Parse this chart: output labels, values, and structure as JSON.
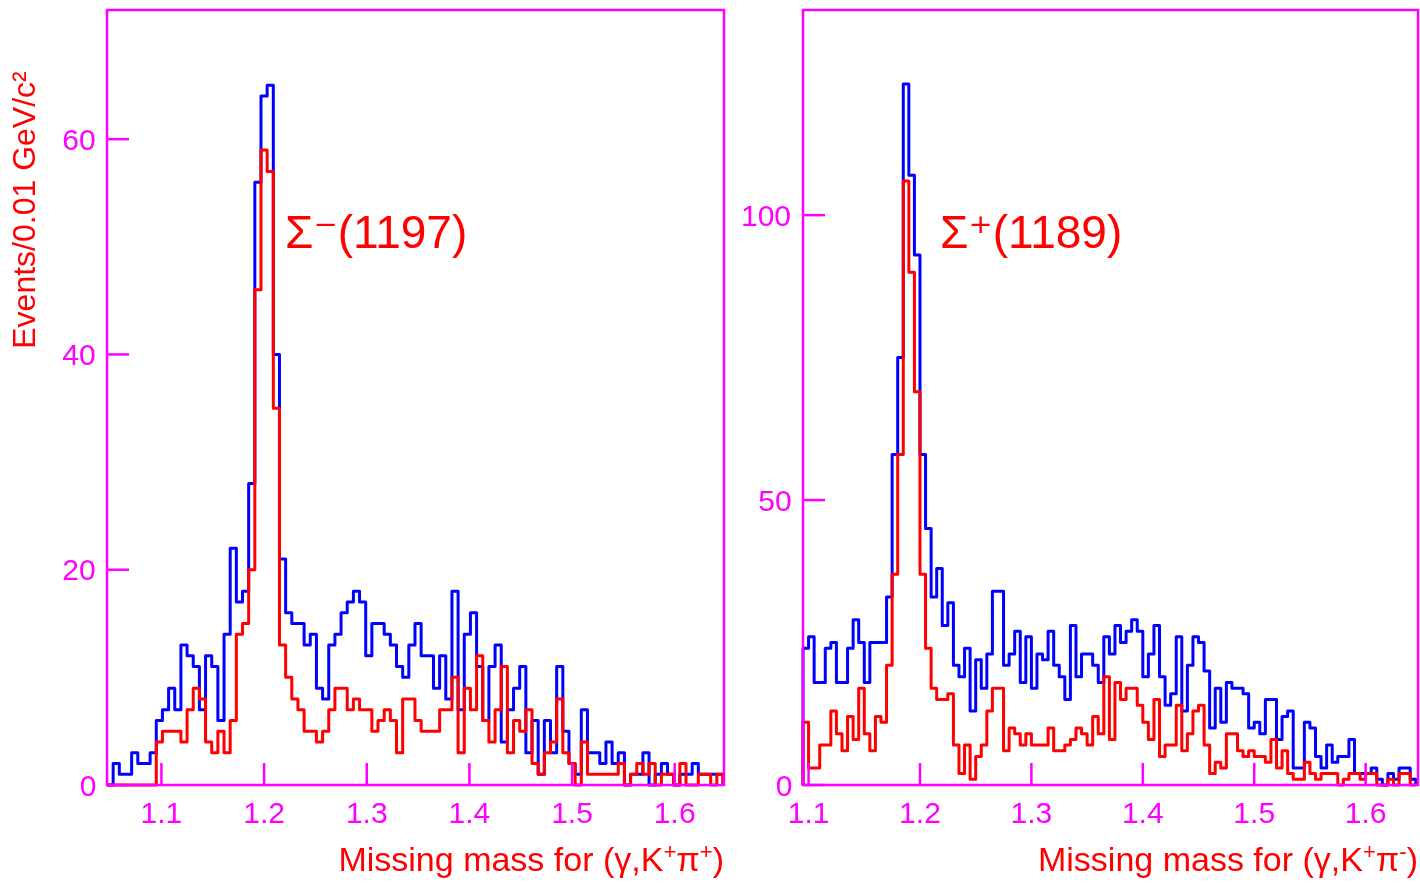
{
  "chart_data": [
    {
      "type": "histogram",
      "xlabel": "Missing mass for (γ,K$^{+}$π$^{+}$)",
      "ylabel": "Events/0.01 GeV/c²",
      "annotations": [
        "Σ⁻(1197)"
      ],
      "bins": [
        1.047,
        1.053,
        1.059,
        1.065,
        1.071,
        1.077,
        1.083,
        1.089,
        1.095,
        1.101,
        1.107,
        1.113,
        1.119,
        1.125,
        1.131,
        1.137,
        1.143,
        1.149,
        1.155,
        1.161,
        1.167,
        1.173,
        1.179,
        1.185,
        1.191,
        1.197,
        1.203,
        1.209,
        1.215,
        1.221,
        1.227,
        1.233,
        1.239,
        1.245,
        1.251,
        1.257,
        1.263,
        1.269,
        1.275,
        1.281,
        1.287,
        1.293,
        1.299,
        1.305,
        1.311,
        1.317,
        1.323,
        1.329,
        1.335,
        1.341,
        1.347,
        1.353,
        1.359,
        1.365,
        1.371,
        1.377,
        1.383,
        1.389,
        1.395,
        1.401,
        1.407,
        1.413,
        1.419,
        1.425,
        1.431,
        1.437,
        1.443,
        1.449,
        1.455,
        1.461,
        1.467,
        1.473,
        1.479,
        1.485,
        1.491,
        1.497,
        1.503,
        1.509,
        1.515,
        1.521,
        1.527,
        1.533,
        1.539,
        1.545,
        1.551,
        1.557,
        1.563,
        1.569,
        1.575,
        1.581,
        1.587,
        1.593,
        1.599,
        1.605,
        1.611,
        1.617,
        1.623,
        1.629,
        1.635,
        1.641,
        1.647
      ],
      "series": [
        {
          "color": "#0000ff",
          "values": [
            0,
            2,
            1,
            1,
            3,
            2,
            2,
            3,
            6,
            7,
            9,
            7,
            13,
            12,
            11,
            7,
            12,
            11,
            6,
            14,
            22,
            17,
            18,
            28,
            56,
            64,
            65,
            40,
            21,
            16,
            15,
            15,
            13,
            14,
            9,
            8,
            13,
            14,
            16,
            17,
            18,
            17,
            12,
            15,
            15,
            14,
            13,
            11,
            10,
            13,
            15,
            12,
            12,
            9,
            12,
            8,
            18,
            7,
            14,
            16,
            11,
            6,
            11,
            13,
            4,
            7,
            9,
            11,
            3,
            6,
            1,
            6,
            3,
            11,
            5,
            2,
            1,
            7,
            3,
            3,
            2,
            4,
            2,
            3,
            0,
            1,
            1,
            3,
            0,
            1,
            2,
            1,
            0,
            1,
            1,
            2,
            1,
            1,
            1,
            1
          ]
        },
        {
          "color": "#ff0000",
          "values": [
            0,
            0,
            0,
            0,
            0,
            0,
            0,
            0,
            4,
            5,
            5,
            5,
            4,
            7,
            9,
            8,
            4,
            3,
            5,
            3,
            6,
            14,
            15,
            20,
            46,
            59,
            57,
            35,
            13,
            10,
            8,
            7,
            5,
            5,
            4,
            5,
            7,
            9,
            9,
            7,
            8,
            7,
            7,
            5,
            6,
            7,
            6,
            3,
            8,
            8,
            6,
            5,
            5,
            5,
            7,
            7,
            10,
            3,
            9,
            7,
            12,
            6,
            4,
            7,
            11,
            3,
            6,
            5,
            7,
            2,
            1,
            3,
            4,
            8,
            3,
            2,
            0,
            4,
            1,
            1,
            1,
            1,
            1,
            2,
            0,
            1,
            2,
            1,
            2,
            0,
            1,
            1,
            0,
            2,
            0,
            0,
            1,
            1,
            0,
            1
          ]
        }
      ],
      "xlim": [
        1.047,
        1.648
      ],
      "ylim": [
        0,
        72
      ],
      "xticks": [
        1.1,
        1.2,
        1.3,
        1.4,
        1.5,
        1.6
      ],
      "yticks": [
        0,
        20,
        40,
        60
      ]
    },
    {
      "type": "histogram",
      "xlabel": "Missing mass for (γ,K$^{+}$π$^{-}$)",
      "annotations": [
        "Σ⁺(1189)"
      ],
      "bins": [
        1.095,
        1.1,
        1.105,
        1.11,
        1.115,
        1.12,
        1.125,
        1.13,
        1.135,
        1.14,
        1.145,
        1.15,
        1.155,
        1.16,
        1.165,
        1.17,
        1.175,
        1.18,
        1.185,
        1.19,
        1.195,
        1.2,
        1.205,
        1.21,
        1.215,
        1.22,
        1.225,
        1.23,
        1.235,
        1.24,
        1.245,
        1.25,
        1.255,
        1.26,
        1.265,
        1.27,
        1.275,
        1.28,
        1.285,
        1.29,
        1.295,
        1.3,
        1.305,
        1.31,
        1.315,
        1.32,
        1.325,
        1.33,
        1.335,
        1.34,
        1.345,
        1.35,
        1.355,
        1.36,
        1.365,
        1.37,
        1.375,
        1.38,
        1.385,
        1.39,
        1.395,
        1.4,
        1.405,
        1.41,
        1.415,
        1.42,
        1.425,
        1.43,
        1.435,
        1.44,
        1.445,
        1.45,
        1.455,
        1.46,
        1.465,
        1.47,
        1.475,
        1.48,
        1.485,
        1.49,
        1.495,
        1.5,
        1.505,
        1.51,
        1.515,
        1.52,
        1.525,
        1.53,
        1.535,
        1.54,
        1.545,
        1.55,
        1.555,
        1.56,
        1.565,
        1.57,
        1.575,
        1.58,
        1.585,
        1.59,
        1.595,
        1.6,
        1.605,
        1.61,
        1.615,
        1.62,
        1.625,
        1.63,
        1.635,
        1.64,
        1.645
      ],
      "series": [
        {
          "color": "#0000ff",
          "values": [
            24,
            26,
            18,
            18,
            24,
            25,
            18,
            18,
            24,
            29,
            25,
            18,
            25,
            25,
            25,
            33,
            58,
            75,
            123,
            107,
            93,
            58,
            45,
            33,
            38,
            28,
            32,
            21,
            19,
            24,
            13,
            22,
            17,
            23,
            34,
            34,
            21,
            23,
            27,
            18,
            26,
            17,
            23,
            22,
            27,
            21,
            19,
            15,
            28,
            19,
            23,
            23,
            21,
            18,
            26,
            23,
            28,
            25,
            27,
            29,
            27,
            19,
            23,
            28,
            19,
            14,
            16,
            26,
            13,
            21,
            26,
            25,
            20,
            10,
            17,
            11,
            18,
            17,
            17,
            16,
            10,
            11,
            9,
            15,
            15,
            8,
            12,
            13,
            3,
            3,
            11,
            10,
            5,
            3,
            7,
            4,
            5,
            5,
            8,
            2,
            2,
            2,
            3,
            1,
            0,
            2,
            1,
            3,
            3,
            1
          ]
        },
        {
          "color": "#ff0000",
          "values": [
            11,
            3,
            3,
            7,
            7,
            13,
            9,
            6,
            12,
            8,
            17,
            9,
            6,
            12,
            11,
            21,
            37,
            58,
            106,
            90,
            69,
            37,
            24,
            17,
            15,
            15,
            16,
            7,
            2,
            7,
            1,
            5,
            7,
            13,
            17,
            17,
            6,
            10,
            9,
            7,
            9,
            7,
            7,
            7,
            10,
            6,
            6,
            7,
            8,
            10,
            9,
            7,
            12,
            9,
            19,
            8,
            18,
            15,
            17,
            17,
            14,
            11,
            8,
            15,
            5,
            7,
            7,
            14,
            6,
            9,
            13,
            14,
            7,
            2,
            4,
            3,
            9,
            9,
            6,
            5,
            6,
            5,
            5,
            4,
            8,
            3,
            6,
            2,
            1,
            1,
            4,
            2,
            1,
            2,
            2,
            2,
            0,
            1,
            2,
            2,
            1,
            2,
            2,
            0,
            0,
            1,
            0,
            2,
            2,
            0
          ]
        }
      ],
      "xlim": [
        1.095,
        1.647
      ],
      "ylim": [
        0,
        136
      ],
      "xticks": [
        1.1,
        1.2,
        1.3,
        1.4,
        1.5,
        1.6
      ],
      "yticks": [
        0,
        50,
        100
      ]
    }
  ]
}
